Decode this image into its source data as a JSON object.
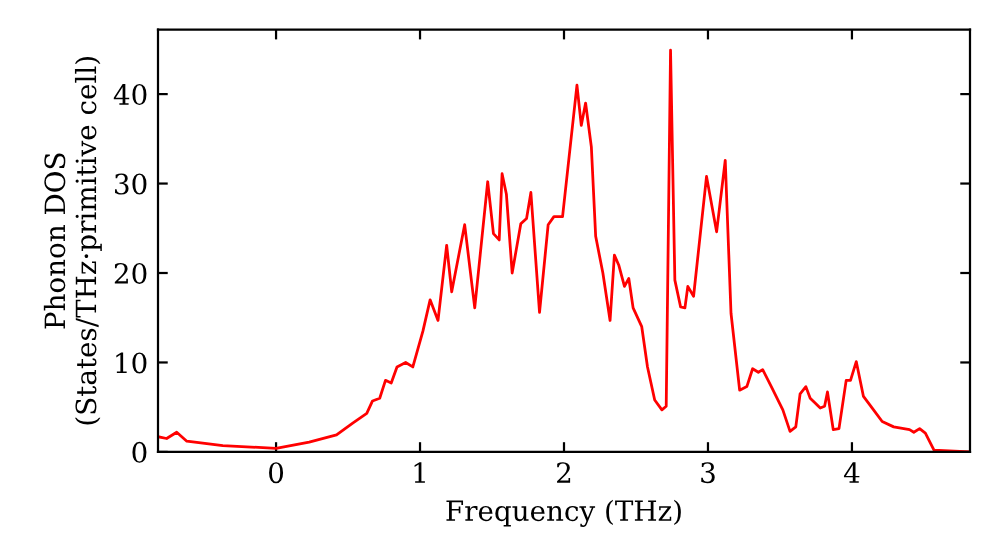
{
  "chart_data": {
    "type": "line",
    "xlabel": "Frequency (THz)",
    "ylabel": "Phonon DOS\n(States/THz·primitive cell)",
    "x": [
      -0.82,
      -0.76,
      -0.69,
      -0.62,
      -0.37,
      0,
      0.23,
      0.42,
      0.53,
      0.63,
      0.67,
      0.72,
      0.76,
      0.8,
      0.84,
      0.9,
      0.95,
      1.02,
      1.07,
      1.125,
      1.185,
      1.22,
      1.31,
      1.38,
      1.47,
      1.51,
      1.55,
      1.57,
      1.6,
      1.64,
      1.7,
      1.74,
      1.77,
      1.83,
      1.89,
      1.93,
      1.99,
      2.09,
      2.12,
      2.15,
      2.19,
      2.22,
      2.27,
      2.32,
      2.35,
      2.38,
      2.42,
      2.45,
      2.48,
      2.54,
      2.58,
      2.63,
      2.68,
      2.71,
      2.74,
      2.77,
      2.81,
      2.84,
      2.86,
      2.9,
      2.99,
      3.06,
      3.12,
      3.16,
      3.22,
      3.27,
      3.31,
      3.35,
      3.38,
      3.44,
      3.52,
      3.57,
      3.61,
      3.64,
      3.68,
      3.71,
      3.78,
      3.81,
      3.83,
      3.87,
      3.91,
      3.96,
      3.99,
      4.03,
      4.08,
      4.15,
      4.21,
      4.29,
      4.4,
      4.43,
      4.47,
      4.51,
      4.57,
      4.82
    ],
    "series": [
      {
        "color": "#ff0000",
        "values": [
          1.7,
          1.5,
          2.2,
          1.2,
          0.7,
          0.4,
          1.1,
          1.9,
          3.2,
          4.3,
          5.7,
          6.0,
          8.0,
          7.7,
          9.5,
          10.0,
          9.5,
          13.5,
          17.0,
          14.7,
          23.1,
          17.9,
          25.4,
          16.1,
          30.2,
          24.4,
          23.7,
          31.1,
          28.8,
          20.0,
          25.5,
          26.1,
          29.0,
          15.6,
          25.4,
          26.3,
          26.3,
          41.0,
          36.5,
          39.0,
          34.1,
          24.1,
          20.0,
          14.7,
          22.0,
          20.9,
          18.5,
          19.4,
          16.1,
          14.0,
          9.5,
          5.8,
          4.7,
          5.1,
          44.9,
          19.2,
          16.2,
          16.1,
          18.5,
          17.4,
          30.8,
          24.6,
          32.6,
          15.5,
          6.9,
          7.3,
          9.3,
          8.9,
          9.2,
          7.3,
          4.7,
          2.3,
          2.8,
          6.5,
          7.3,
          6.0,
          4.9,
          5.1,
          6.7,
          2.5,
          2.6,
          8.0,
          8.0,
          10.1,
          6.2,
          4.7,
          3.4,
          2.8,
          2.5,
          2.2,
          2.6,
          2.1,
          0.2,
          0
        ]
      }
    ],
    "xlim": [
      -0.82,
      4.82
    ],
    "ylim": [
      0,
      47.2
    ],
    "xticks": [
      0,
      1,
      2,
      3,
      4
    ],
    "yticks": [
      0,
      10,
      20,
      30,
      40
    ],
    "grid": false,
    "legend": false,
    "marker": "none",
    "line_style": "solid"
  }
}
